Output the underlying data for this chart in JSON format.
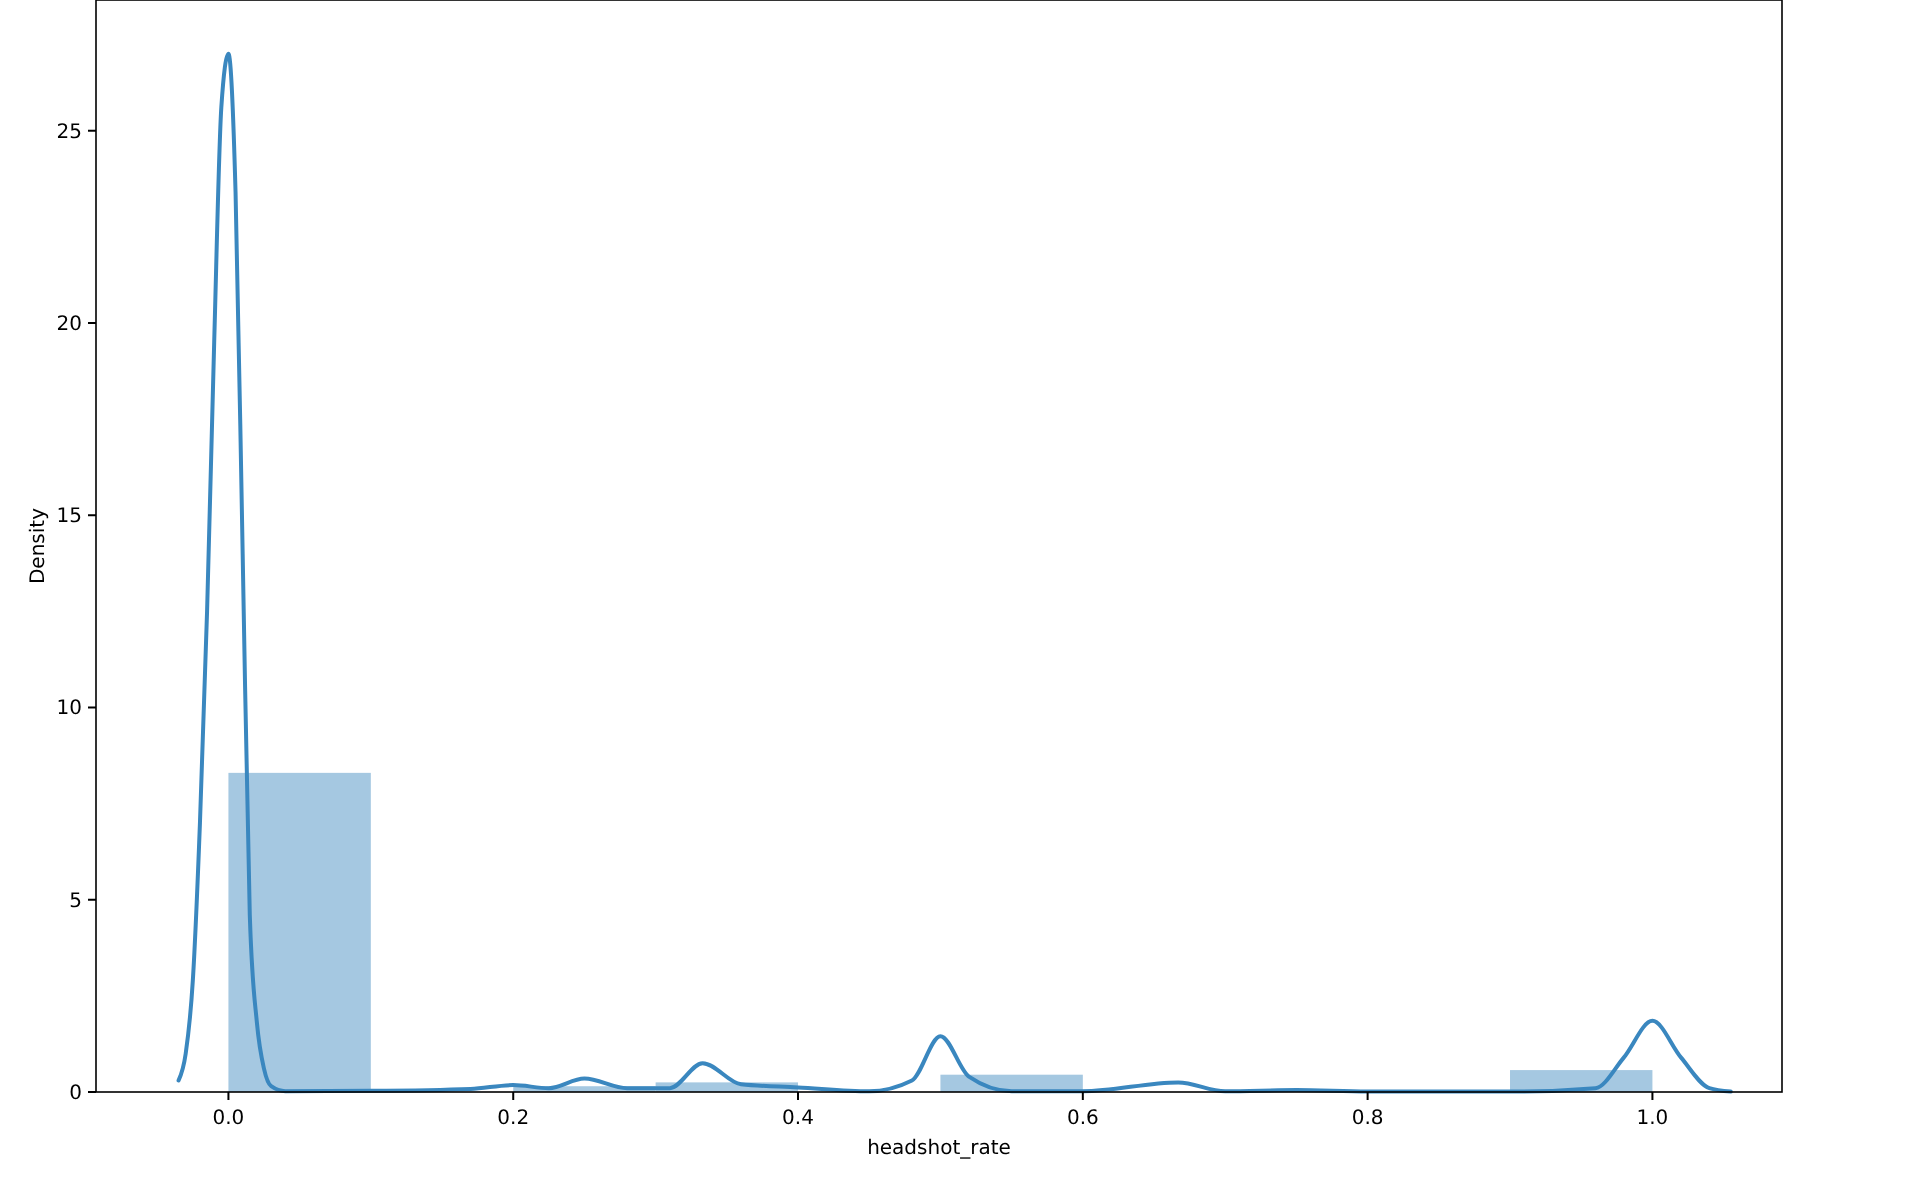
{
  "chart_data": {
    "type": "histogram",
    "xlabel": "headshot_rate",
    "ylabel": "Density",
    "bins": [
      0,
      0.1,
      0.2,
      0.3,
      0.4,
      0.5,
      0.6,
      0.7,
      0.8,
      0.9,
      1.0
    ],
    "values": [
      8.3,
      null,
      0.15,
      0.25,
      null,
      0.45,
      null,
      null,
      null,
      0.57
    ],
    "color": "#a5c8e1",
    "series": [
      {
        "type": "line",
        "color": "#3a87bf",
        "x": [
          -0.035,
          -0.03,
          -0.025,
          -0.02,
          -0.015,
          -0.01,
          -0.005,
          0,
          0.005,
          0.01,
          0.015,
          0.02,
          0.025,
          0.03,
          0.04,
          0.1,
          0.17,
          0.2,
          0.225,
          0.25,
          0.28,
          0.31,
          0.333,
          0.36,
          0.4,
          0.45,
          0.48,
          0.5,
          0.52,
          0.55,
          0.6,
          0.667,
          0.7,
          0.75,
          0.8,
          0.9,
          0.96,
          0.98,
          1.0,
          1.02,
          1.04,
          1.055
        ],
        "values": [
          0.3,
          1.0,
          2.9,
          7,
          12.5,
          19.5,
          25.6,
          27,
          23.4,
          14,
          4.6,
          1.8,
          0.6,
          0.15,
          0.02,
          0.03,
          0.08,
          0.18,
          0.1,
          0.35,
          0.1,
          0.1,
          0.75,
          0.2,
          0.12,
          0.02,
          0.3,
          1.45,
          0.4,
          0.02,
          0.02,
          0.25,
          0.02,
          0.05,
          0.01,
          0.01,
          0.1,
          0.9,
          1.85,
          0.9,
          0.1,
          0.01
        ]
      }
    ],
    "xlim": [
      -0.093,
      1.091
    ],
    "ylim": [
      0,
      28.4
    ],
    "xticks": [
      {
        "value": 0,
        "label": "0.0"
      },
      0.2,
      0.4,
      0.6,
      0.8,
      {
        "value": 1,
        "label": "1.0"
      }
    ],
    "yticks": [
      0,
      5,
      10,
      15,
      20,
      25
    ],
    "grid": false
  }
}
